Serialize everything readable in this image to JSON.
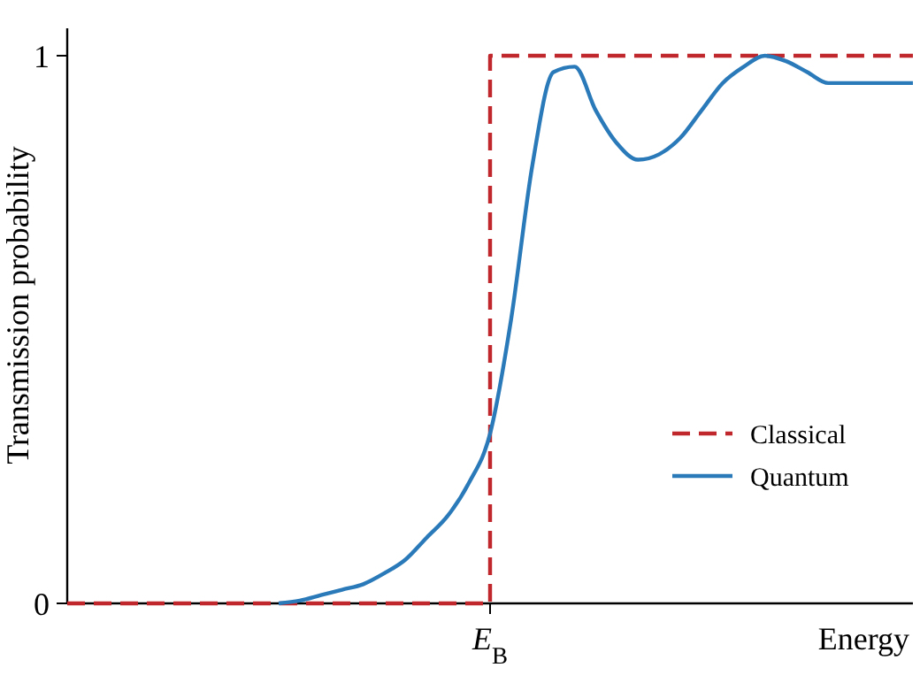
{
  "chart_data": {
    "type": "line",
    "ylabel": "Transmission probability",
    "xlabel": "Energy",
    "categories": [
      null,
      null,
      null,
      null,
      null,
      null,
      null,
      null,
      null,
      null,
      null,
      null,
      null,
      null,
      null,
      null,
      null,
      null,
      null,
      null,
      "E$_{B}$",
      null,
      null,
      null,
      null,
      null,
      null,
      null,
      null,
      null,
      null,
      null,
      null,
      null,
      null,
      null,
      null,
      null,
      null,
      null,
      null
    ],
    "series": [
      {
        "name": "Classical",
        "type": "step",
        "color": "#c0272d",
        "line_style": "dashed",
        "values": [
          0,
          0,
          0,
          0,
          0,
          0,
          0,
          0,
          0,
          0,
          0,
          0,
          0,
          0,
          0,
          0,
          0,
          0,
          0,
          0,
          1,
          1,
          1,
          1,
          1,
          1,
          1,
          1,
          1,
          1,
          1,
          1,
          1,
          1,
          1,
          1,
          1,
          1,
          1,
          1,
          1
        ]
      },
      {
        "name": "Quantum",
        "type": "line",
        "color": "#2a7ab9",
        "line_style": "solid",
        "values": [
          null,
          null,
          null,
          null,
          null,
          null,
          null,
          null,
          null,
          null,
          0,
          0.005,
          0.015,
          0.025,
          0.035,
          0.055,
          0.08,
          0.12,
          0.16,
          0.22,
          0.31,
          0.52,
          0.8,
          0.97,
          0.98,
          0.9,
          0.84,
          0.81,
          0.82,
          0.85,
          0.9,
          0.95,
          0.98,
          1,
          0.99,
          0.97,
          0.95,
          0.95,
          0.95,
          0.95,
          0.95
        ]
      }
    ],
    "ylim": [
      0,
      1.05
    ],
    "yticks": [
      0,
      1
    ],
    "grid": false,
    "legend": "right",
    "marker": "none"
  }
}
